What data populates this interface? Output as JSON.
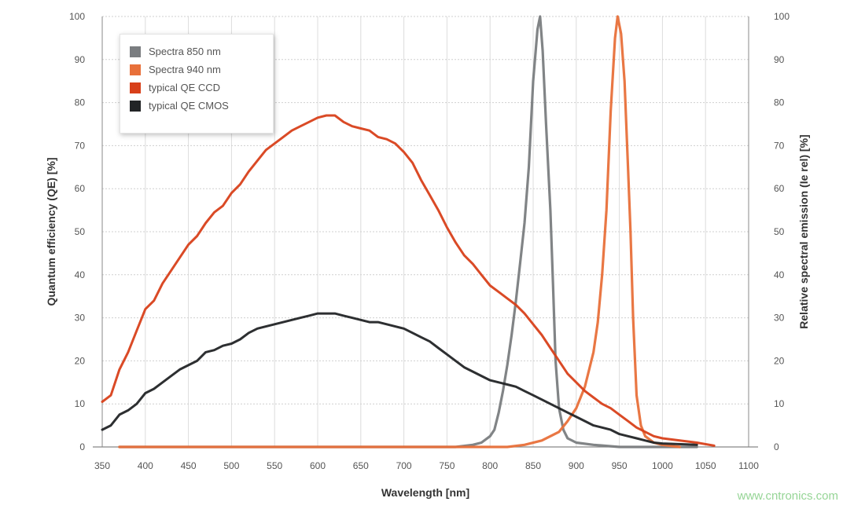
{
  "chart_data": {
    "type": "line",
    "xlabel": "Wavelength [nm]",
    "ylabel": "Quantum efficiency (QE) [%]",
    "y2label": "Relative spectral emission (Ie rel) [%]",
    "xlim": [
      350,
      1100
    ],
    "ylim": [
      0,
      100
    ],
    "y2lim": [
      0,
      100
    ],
    "xticks": [
      350,
      400,
      450,
      500,
      550,
      600,
      650,
      700,
      750,
      800,
      850,
      900,
      950,
      1000,
      1050,
      1100
    ],
    "yticks": [
      0,
      10,
      20,
      30,
      40,
      50,
      60,
      70,
      80,
      90,
      100
    ],
    "grid": true,
    "legend_position": "top-left",
    "series": [
      {
        "name": "Spectra 850 nm",
        "color": "#7a7d80",
        "axis": "right",
        "points": [
          [
            370,
            0
          ],
          [
            760,
            0
          ],
          [
            780,
            0.5
          ],
          [
            790,
            1
          ],
          [
            800,
            2.5
          ],
          [
            805,
            4
          ],
          [
            810,
            8
          ],
          [
            815,
            13
          ],
          [
            820,
            19
          ],
          [
            825,
            26
          ],
          [
            830,
            34
          ],
          [
            835,
            43
          ],
          [
            840,
            52
          ],
          [
            845,
            65
          ],
          [
            850,
            85
          ],
          [
            855,
            97
          ],
          [
            858,
            100
          ],
          [
            861,
            92
          ],
          [
            865,
            75
          ],
          [
            870,
            55
          ],
          [
            873,
            38
          ],
          [
            876,
            20
          ],
          [
            880,
            9
          ],
          [
            885,
            4
          ],
          [
            890,
            2
          ],
          [
            900,
            1
          ],
          [
            920,
            0.5
          ],
          [
            950,
            0
          ],
          [
            1040,
            0
          ]
        ]
      },
      {
        "name": "Spectra 940 nm",
        "color": "#e8703a",
        "axis": "right",
        "points": [
          [
            370,
            0
          ],
          [
            820,
            0
          ],
          [
            840,
            0.5
          ],
          [
            860,
            1.5
          ],
          [
            880,
            3.5
          ],
          [
            890,
            6
          ],
          [
            900,
            9
          ],
          [
            910,
            14
          ],
          [
            920,
            22
          ],
          [
            925,
            29
          ],
          [
            930,
            40
          ],
          [
            935,
            55
          ],
          [
            940,
            78
          ],
          [
            945,
            95
          ],
          [
            948,
            100
          ],
          [
            952,
            96
          ],
          [
            956,
            85
          ],
          [
            960,
            65
          ],
          [
            963,
            50
          ],
          [
            966,
            30
          ],
          [
            970,
            12
          ],
          [
            975,
            5
          ],
          [
            980,
            2.5
          ],
          [
            990,
            1
          ],
          [
            1000,
            0.5
          ],
          [
            1020,
            0
          ]
        ]
      },
      {
        "name": "typical QE CCD",
        "color": "#d8401a",
        "axis": "left",
        "points": [
          [
            350,
            10.5
          ],
          [
            360,
            12
          ],
          [
            370,
            18
          ],
          [
            380,
            22
          ],
          [
            390,
            27
          ],
          [
            400,
            32
          ],
          [
            410,
            34
          ],
          [
            420,
            38
          ],
          [
            430,
            41
          ],
          [
            440,
            44
          ],
          [
            450,
            47
          ],
          [
            460,
            49
          ],
          [
            470,
            52
          ],
          [
            480,
            54.5
          ],
          [
            490,
            56
          ],
          [
            500,
            59
          ],
          [
            510,
            61
          ],
          [
            520,
            64
          ],
          [
            530,
            66.5
          ],
          [
            540,
            69
          ],
          [
            550,
            70.5
          ],
          [
            560,
            72
          ],
          [
            570,
            73.5
          ],
          [
            580,
            74.5
          ],
          [
            590,
            75.5
          ],
          [
            600,
            76.5
          ],
          [
            610,
            77
          ],
          [
            620,
            77
          ],
          [
            630,
            75.5
          ],
          [
            640,
            74.5
          ],
          [
            650,
            74
          ],
          [
            660,
            73.5
          ],
          [
            670,
            72
          ],
          [
            680,
            71.5
          ],
          [
            690,
            70.5
          ],
          [
            700,
            68.5
          ],
          [
            710,
            66
          ],
          [
            720,
            62
          ],
          [
            730,
            58.5
          ],
          [
            740,
            55
          ],
          [
            750,
            51
          ],
          [
            760,
            47.5
          ],
          [
            770,
            44.5
          ],
          [
            780,
            42.5
          ],
          [
            790,
            40
          ],
          [
            800,
            37.5
          ],
          [
            810,
            36
          ],
          [
            820,
            34.5
          ],
          [
            830,
            33
          ],
          [
            840,
            31
          ],
          [
            850,
            28.5
          ],
          [
            860,
            26
          ],
          [
            870,
            23
          ],
          [
            880,
            20
          ],
          [
            890,
            17
          ],
          [
            900,
            15
          ],
          [
            910,
            13
          ],
          [
            920,
            11.5
          ],
          [
            930,
            10
          ],
          [
            940,
            9
          ],
          [
            950,
            7.5
          ],
          [
            960,
            6
          ],
          [
            970,
            4.5
          ],
          [
            980,
            3.5
          ],
          [
            990,
            2.5
          ],
          [
            1000,
            2
          ],
          [
            1020,
            1.5
          ],
          [
            1040,
            1
          ],
          [
            1060,
            0.3
          ]
        ]
      },
      {
        "name": "typical QE CMOS",
        "color": "#222426",
        "axis": "left",
        "points": [
          [
            350,
            4
          ],
          [
            360,
            5
          ],
          [
            370,
            7.5
          ],
          [
            380,
            8.5
          ],
          [
            390,
            10
          ],
          [
            400,
            12.5
          ],
          [
            410,
            13.5
          ],
          [
            420,
            15
          ],
          [
            430,
            16.5
          ],
          [
            440,
            18
          ],
          [
            450,
            19
          ],
          [
            460,
            20
          ],
          [
            470,
            22
          ],
          [
            480,
            22.5
          ],
          [
            490,
            23.5
          ],
          [
            500,
            24
          ],
          [
            510,
            25
          ],
          [
            520,
            26.5
          ],
          [
            530,
            27.5
          ],
          [
            540,
            28
          ],
          [
            550,
            28.5
          ],
          [
            560,
            29
          ],
          [
            570,
            29.5
          ],
          [
            580,
            30
          ],
          [
            590,
            30.5
          ],
          [
            600,
            31
          ],
          [
            610,
            31
          ],
          [
            620,
            31
          ],
          [
            630,
            30.5
          ],
          [
            640,
            30
          ],
          [
            650,
            29.5
          ],
          [
            660,
            29
          ],
          [
            670,
            29
          ],
          [
            680,
            28.5
          ],
          [
            690,
            28
          ],
          [
            700,
            27.5
          ],
          [
            710,
            26.5
          ],
          [
            720,
            25.5
          ],
          [
            730,
            24.5
          ],
          [
            740,
            23
          ],
          [
            750,
            21.5
          ],
          [
            760,
            20
          ],
          [
            770,
            18.5
          ],
          [
            780,
            17.5
          ],
          [
            790,
            16.5
          ],
          [
            800,
            15.5
          ],
          [
            810,
            15
          ],
          [
            820,
            14.5
          ],
          [
            830,
            14
          ],
          [
            840,
            13
          ],
          [
            850,
            12
          ],
          [
            860,
            11
          ],
          [
            870,
            10
          ],
          [
            880,
            9
          ],
          [
            890,
            8
          ],
          [
            900,
            7
          ],
          [
            910,
            6
          ],
          [
            920,
            5
          ],
          [
            930,
            4.5
          ],
          [
            940,
            4
          ],
          [
            950,
            3
          ],
          [
            960,
            2.5
          ],
          [
            970,
            2
          ],
          [
            980,
            1.5
          ],
          [
            990,
            1
          ],
          [
            1000,
            0.8
          ],
          [
            1040,
            0.5
          ]
        ]
      }
    ]
  },
  "watermark": "www.cntronics.com"
}
